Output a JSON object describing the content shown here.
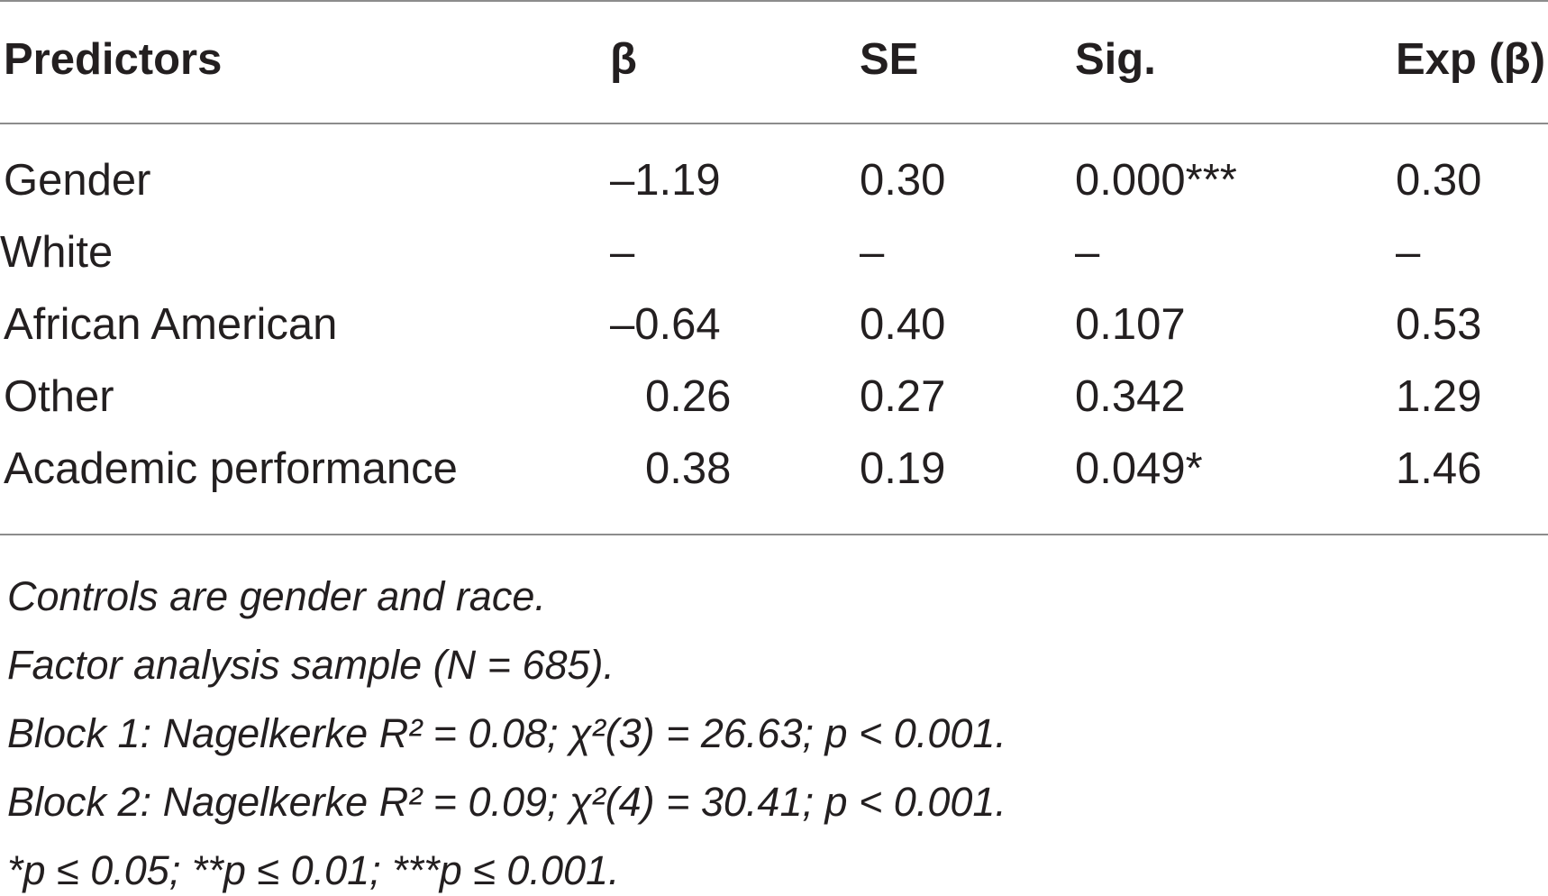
{
  "table": {
    "headers": [
      "Predictors",
      "β",
      "SE",
      "Sig.",
      "Exp (β)"
    ],
    "rows": [
      {
        "predictor": "Gender",
        "beta": "–1.19",
        "se": "0.30",
        "sig": "0.000***",
        "exp": "0.30"
      },
      {
        "predictor": "White",
        "beta": "–",
        "se": "–",
        "sig": "–",
        "exp": "–"
      },
      {
        "predictor": "African American",
        "beta": "–0.64",
        "se": "0.40",
        "sig": "0.107",
        "exp": "0.53"
      },
      {
        "predictor": "Other",
        "beta": "0.26",
        "se": "0.27",
        "sig": "0.342",
        "exp": "1.29"
      },
      {
        "predictor": "Academic performance",
        "beta": "0.38",
        "se": "0.19",
        "sig": "0.049*",
        "exp": "1.46"
      }
    ]
  },
  "notes": [
    "Controls are gender and race.",
    "Factor analysis sample (N = 685).",
    "Block 1: Nagelkerke R² = 0.08; χ²(3) = 26.63; p < 0.001.",
    "Block 2: Nagelkerke R² = 0.09; χ²(4) = 30.41; p < 0.001.",
    "*p ≤ 0.05; **p ≤ 0.01; ***p ≤ 0.001."
  ]
}
